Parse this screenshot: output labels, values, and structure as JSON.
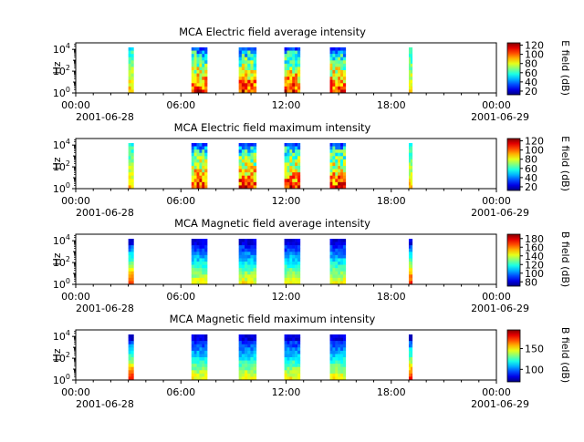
{
  "chart_data": [
    {
      "type": "heatmap",
      "title": "MCA  Electric field average intensity",
      "ylabel": "Hz",
      "y_scale": "log",
      "y_ticks": [
        {
          "base": "10",
          "exp": "0"
        },
        {
          "base": "10",
          "exp": "2"
        },
        {
          "base": "10",
          "exp": "4"
        }
      ],
      "x_ticks": [
        "00:00",
        "06:00",
        "12:00",
        "18:00",
        "00:00"
      ],
      "x_tick_dates": [
        "2001-06-28",
        "2001-06-29"
      ],
      "x_range": [
        "2001-06-28 00:00",
        "2001-06-29 00:00"
      ],
      "colorbar_label": "E field (dB)",
      "colorbar_ticks": [
        "20",
        "40",
        "60",
        "80",
        "100",
        "120"
      ],
      "colorbar_range": [
        12,
        125
      ],
      "colormap": "jet",
      "passes_utc_hours": [
        [
          3.0,
          3.3
        ],
        [
          6.6,
          7.5
        ],
        [
          9.3,
          10.3
        ],
        [
          11.9,
          12.8
        ],
        [
          14.5,
          15.4
        ],
        [
          19.0,
          19.2
        ]
      ],
      "spectrum_high_freq_color": "#0a2aff"
    },
    {
      "type": "heatmap",
      "title": "MCA  Electric field maximum intensity",
      "ylabel": "Hz",
      "y_scale": "log",
      "y_ticks": [
        {
          "base": "10",
          "exp": "0"
        },
        {
          "base": "10",
          "exp": "2"
        },
        {
          "base": "10",
          "exp": "4"
        }
      ],
      "x_ticks": [
        "00:00",
        "06:00",
        "12:00",
        "18:00",
        "00:00"
      ],
      "x_tick_dates": [
        "2001-06-28",
        "2001-06-29"
      ],
      "x_range": [
        "2001-06-28 00:00",
        "2001-06-29 00:00"
      ],
      "colorbar_label": "E field (dB)",
      "colorbar_ticks": [
        "20",
        "40",
        "60",
        "80",
        "100",
        "120"
      ],
      "colorbar_range": [
        12,
        125
      ],
      "colormap": "jet",
      "passes_utc_hours": [
        [
          3.0,
          3.3
        ],
        [
          6.6,
          7.5
        ],
        [
          9.3,
          10.3
        ],
        [
          11.9,
          12.8
        ],
        [
          14.5,
          15.4
        ],
        [
          19.0,
          19.2
        ]
      ]
    },
    {
      "type": "heatmap",
      "title": "MCA  Magnetic field average intensity",
      "ylabel": "Hz",
      "y_scale": "log",
      "y_ticks": [
        {
          "base": "10",
          "exp": "0"
        },
        {
          "base": "10",
          "exp": "2"
        },
        {
          "base": "10",
          "exp": "4"
        }
      ],
      "x_ticks": [
        "00:00",
        "06:00",
        "12:00",
        "18:00",
        "00:00"
      ],
      "x_tick_dates": [
        "2001-06-28",
        "2001-06-29"
      ],
      "x_range": [
        "2001-06-28 00:00",
        "2001-06-29 00:00"
      ],
      "colorbar_label": "B field (dB)",
      "colorbar_ticks": [
        "80",
        "100",
        "120",
        "140",
        "160",
        "180"
      ],
      "colorbar_range": [
        70,
        190
      ],
      "colormap": "jet",
      "passes_utc_hours": [
        [
          3.0,
          3.3
        ],
        [
          6.6,
          7.5
        ],
        [
          9.3,
          10.3
        ],
        [
          11.9,
          12.8
        ],
        [
          14.5,
          15.4
        ],
        [
          19.0,
          19.2
        ]
      ]
    },
    {
      "type": "heatmap",
      "title": "MCA  Magnetic field maximum intensity",
      "ylabel": "Hz",
      "y_scale": "log",
      "y_ticks": [
        {
          "base": "10",
          "exp": "0"
        },
        {
          "base": "10",
          "exp": "2"
        },
        {
          "base": "10",
          "exp": "4"
        }
      ],
      "x_ticks": [
        "00:00",
        "06:00",
        "12:00",
        "18:00",
        "00:00"
      ],
      "x_tick_dates": [
        "2001-06-28",
        "2001-06-29"
      ],
      "x_range": [
        "2001-06-28 00:00",
        "2001-06-29 00:00"
      ],
      "colorbar_label": "B field (dB)",
      "colorbar_ticks": [
        "100",
        "150"
      ],
      "colorbar_range": [
        70,
        195
      ],
      "colormap": "jet",
      "passes_utc_hours": [
        [
          3.0,
          3.3
        ],
        [
          6.6,
          7.5
        ],
        [
          9.3,
          10.3
        ],
        [
          11.9,
          12.8
        ],
        [
          14.5,
          15.4
        ],
        [
          19.0,
          19.2
        ]
      ]
    }
  ]
}
